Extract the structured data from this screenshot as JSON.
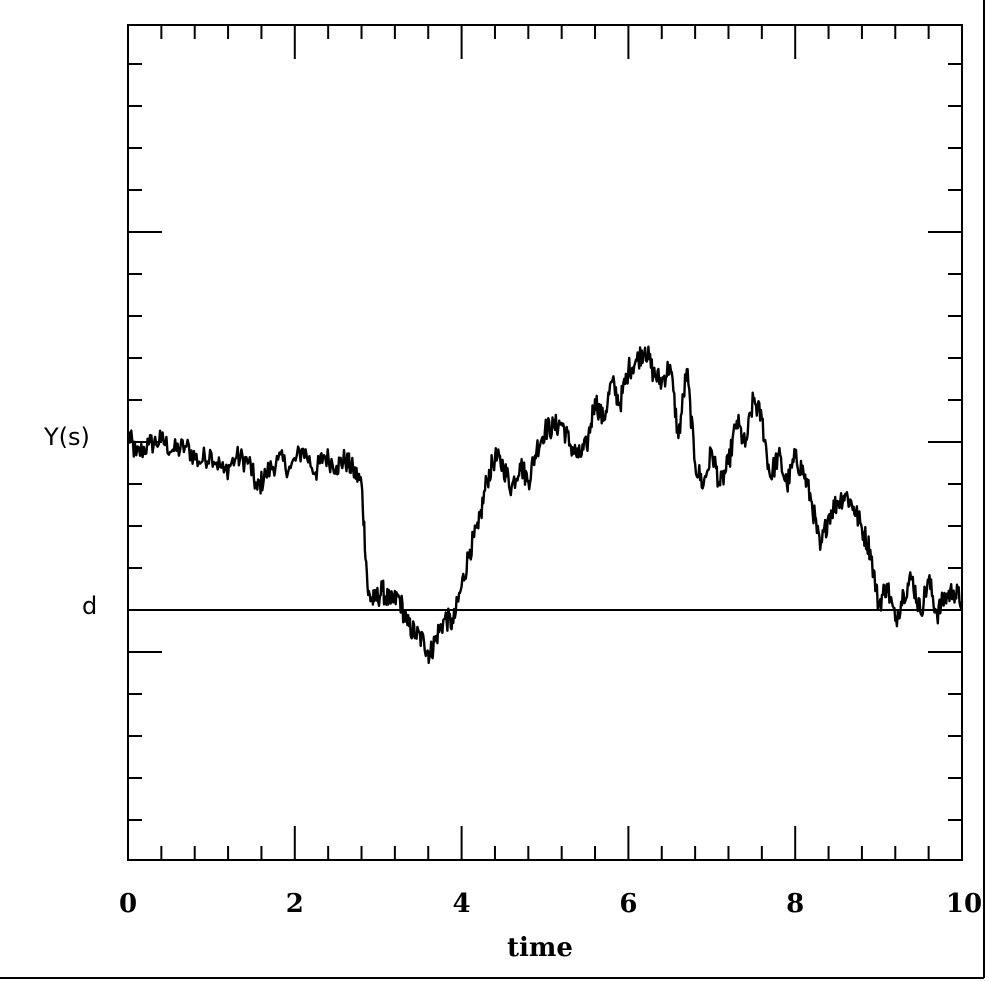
{
  "chart_data": {
    "type": "line",
    "xlabel": "time",
    "ylabel": "",
    "xlim": [
      0,
      10
    ],
    "x_ticks": [
      "0",
      "2",
      "4",
      "6",
      "8",
      "10"
    ],
    "y_axis_ticks_labeled": false,
    "y_marker_labels": {
      "upper": "Y(s)",
      "lower": "d"
    },
    "threshold_line": {
      "label": "d",
      "style": "solid",
      "color": "#000000"
    },
    "grid": false,
    "legend": "none",
    "series": [
      {
        "style": "rough sample path",
        "color": "#000000",
        "x": [
          0.0,
          0.1,
          0.25,
          0.4,
          0.55,
          0.7,
          0.85,
          1.0,
          1.15,
          1.3,
          1.45,
          1.55,
          1.65,
          1.8,
          1.95,
          2.1,
          2.25,
          2.35,
          2.5,
          2.6,
          2.7,
          2.8,
          2.88,
          2.95,
          3.05,
          3.15,
          3.25,
          3.35,
          3.45,
          3.55,
          3.62,
          3.7,
          3.8,
          3.9,
          4.0,
          4.1,
          4.2,
          4.3,
          4.4,
          4.5,
          4.6,
          4.7,
          4.8,
          4.9,
          5.0,
          5.1,
          5.2,
          5.3,
          5.4,
          5.5,
          5.6,
          5.7,
          5.8,
          5.9,
          6.0,
          6.1,
          6.2,
          6.3,
          6.4,
          6.5,
          6.6,
          6.7,
          6.8,
          6.9,
          7.0,
          7.1,
          7.2,
          7.3,
          7.4,
          7.5,
          7.6,
          7.7,
          7.8,
          7.9,
          8.0,
          8.1,
          8.2,
          8.3,
          8.4,
          8.5,
          8.6,
          8.7,
          8.8,
          8.9,
          9.0,
          9.1,
          9.2,
          9.3,
          9.4,
          9.5,
          9.6,
          9.7,
          9.8,
          9.9,
          10.0
        ],
        "values": [
          4.1,
          3.6,
          3.85,
          3.95,
          3.7,
          3.8,
          3.45,
          3.65,
          3.2,
          3.55,
          3.45,
          2.8,
          3.15,
          3.5,
          3.3,
          3.75,
          3.2,
          3.6,
          3.35,
          3.5,
          3.25,
          2.95,
          0.35,
          0.2,
          0.45,
          0.15,
          0.3,
          -0.35,
          -0.55,
          -0.75,
          -1.05,
          -0.6,
          -0.2,
          -0.3,
          0.55,
          1.4,
          1.9,
          3.0,
          3.55,
          3.35,
          2.85,
          3.4,
          3.0,
          3.75,
          4.2,
          4.25,
          4.35,
          3.85,
          3.55,
          3.8,
          4.9,
          4.4,
          5.3,
          4.8,
          5.6,
          5.8,
          6.1,
          5.5,
          5.3,
          5.7,
          4.0,
          5.6,
          3.4,
          2.9,
          3.7,
          2.9,
          3.4,
          4.4,
          3.8,
          4.9,
          4.45,
          3.1,
          3.6,
          2.9,
          3.55,
          3.2,
          2.5,
          1.4,
          2.2,
          2.5,
          2.7,
          2.4,
          1.9,
          1.4,
          0.1,
          0.6,
          -0.25,
          0.4,
          0.75,
          -0.05,
          0.7,
          -0.1,
          0.3,
          0.45,
          0.2
        ]
      }
    ]
  }
}
